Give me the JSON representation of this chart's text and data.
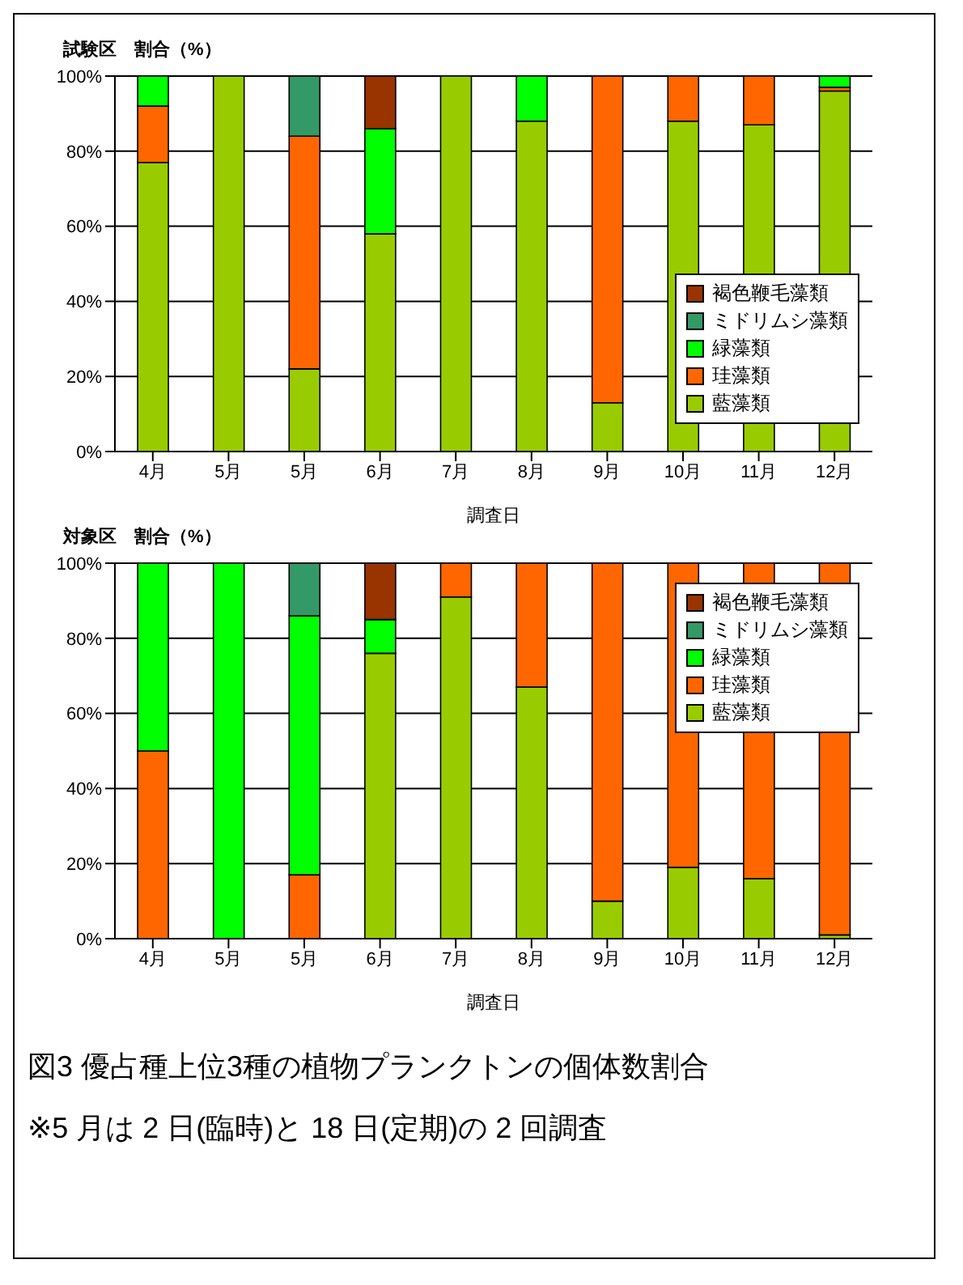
{
  "chart_data": [
    {
      "type": "bar",
      "stacked": true,
      "ylabel": "試験区　割合（%）",
      "xlabel": "調査日",
      "categories": [
        "4月",
        "5月",
        "5月",
        "6月",
        "7月",
        "8月",
        "9月",
        "10月",
        "11月",
        "12月"
      ],
      "series": [
        {
          "name": "藍藻類",
          "color": "#99cc00",
          "values": [
            77,
            100,
            22,
            58,
            100,
            88,
            13,
            88,
            87,
            96
          ]
        },
        {
          "name": "珪藻類",
          "color": "#ff6600",
          "values": [
            15,
            0,
            62,
            0,
            0,
            0,
            87,
            12,
            13,
            1
          ]
        },
        {
          "name": "緑藻類",
          "color": "#00ff00",
          "values": [
            8,
            0,
            0,
            28,
            0,
            12,
            0,
            0,
            0,
            3
          ]
        },
        {
          "name": "ミドリムシ藻類",
          "color": "#339966",
          "values": [
            0,
            0,
            16,
            0,
            0,
            0,
            0,
            0,
            0,
            0
          ]
        },
        {
          "name": "褐色鞭毛藻類",
          "color": "#993300",
          "values": [
            0,
            0,
            0,
            14,
            0,
            0,
            0,
            0,
            0,
            0
          ]
        }
      ],
      "ylim": [
        0,
        100
      ],
      "yticks": [
        {
          "value": 0,
          "label": "0%"
        },
        {
          "value": 20,
          "label": "20%"
        },
        {
          "value": 40,
          "label": "40%"
        },
        {
          "value": 60,
          "label": "60%"
        },
        {
          "value": 80,
          "label": "80%"
        },
        {
          "value": 100,
          "label": "100%"
        }
      ],
      "grid": "y",
      "legend": "bottom right"
    },
    {
      "type": "bar",
      "stacked": true,
      "ylabel": "対象区　割合（%）",
      "xlabel": "調査日",
      "categories": [
        "4月",
        "5月",
        "5月",
        "6月",
        "7月",
        "8月",
        "9月",
        "10月",
        "11月",
        "12月"
      ],
      "series": [
        {
          "name": "藍藻類",
          "color": "#99cc00",
          "values": [
            0,
            0,
            0,
            76,
            91,
            67,
            10,
            19,
            16,
            1
          ]
        },
        {
          "name": "珪藻類",
          "color": "#ff6600",
          "values": [
            50,
            0,
            17,
            0,
            9,
            33,
            90,
            81,
            84,
            99
          ]
        },
        {
          "name": "緑藻類",
          "color": "#00ff00",
          "values": [
            50,
            100,
            69,
            9,
            0,
            0,
            0,
            0,
            0,
            0
          ]
        },
        {
          "name": "ミドリムシ藻類",
          "color": "#339966",
          "values": [
            0,
            0,
            14,
            0,
            0,
            0,
            0,
            0,
            0,
            0
          ]
        },
        {
          "name": "褐色鞭毛藻類",
          "color": "#993300",
          "values": [
            0,
            0,
            0,
            15,
            0,
            0,
            0,
            0,
            0,
            0
          ]
        }
      ],
      "ylim": [
        0,
        100
      ],
      "yticks": [
        {
          "value": 0,
          "label": "0%"
        },
        {
          "value": 20,
          "label": "20%"
        },
        {
          "value": 40,
          "label": "40%"
        },
        {
          "value": 60,
          "label": "60%"
        },
        {
          "value": 80,
          "label": "80%"
        },
        {
          "value": 100,
          "label": "100%"
        }
      ],
      "grid": "y",
      "legend": "top right",
      "annotations": [
        "図3  優占種上位3種の植物プランクトンの個体数割合",
        "※5 月は 2 日(臨時)と 18 日(定期)の 2 回調査"
      ]
    }
  ]
}
